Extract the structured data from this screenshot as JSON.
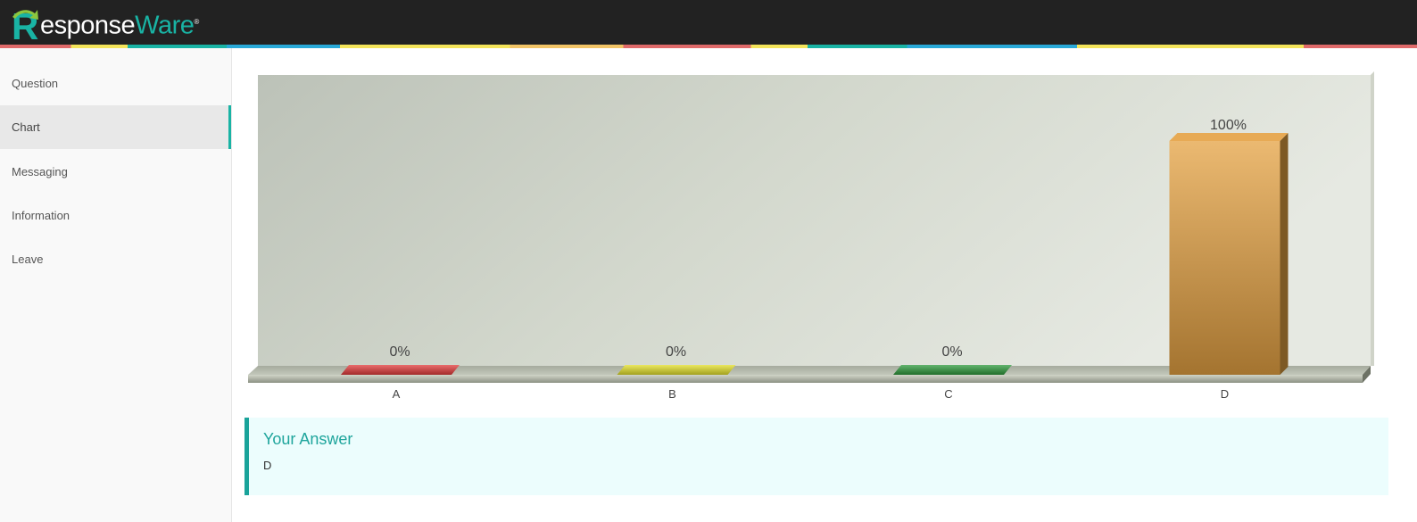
{
  "header": {
    "logo_text_primary": "esponse",
    "logo_text_secondary": "Ware",
    "logo_mark": "R",
    "registered_mark": "®"
  },
  "sidebar": {
    "items": [
      {
        "label": "Question",
        "active": false
      },
      {
        "label": "Chart",
        "active": true
      },
      {
        "label": "Messaging",
        "active": false
      },
      {
        "label": "Information",
        "active": false
      },
      {
        "label": "Leave",
        "active": false
      }
    ]
  },
  "chart_data": {
    "type": "bar",
    "categories": [
      "A",
      "B",
      "C",
      "D"
    ],
    "values": [
      0,
      0,
      0,
      100
    ],
    "value_labels": [
      "0%",
      "0%",
      "0%",
      "100%"
    ],
    "colors": [
      "#e23b3b",
      "#e3df2a",
      "#2e9a3c",
      "#e4a142"
    ],
    "ylim": [
      0,
      100
    ],
    "grid": false,
    "legend": "none"
  },
  "answer": {
    "title": "Your Answer",
    "value": "D"
  }
}
